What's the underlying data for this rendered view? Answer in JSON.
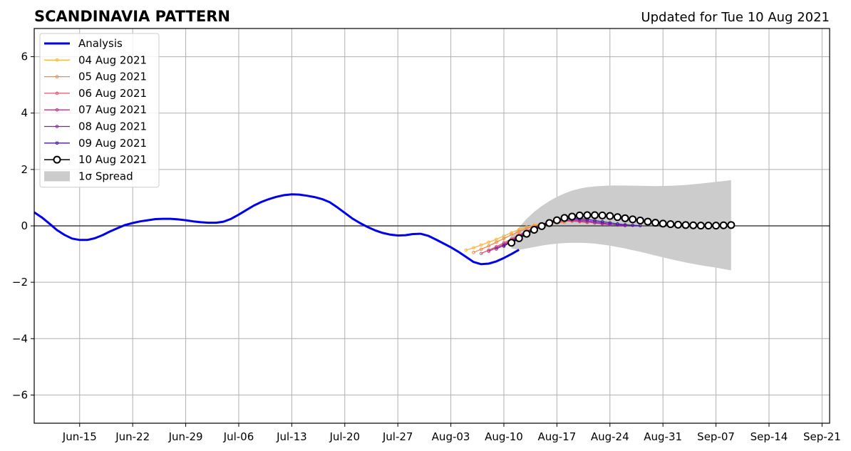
{
  "chart_data": {
    "type": "line",
    "title": "SCANDINAVIA PATTERN",
    "subtitle": "Updated for Tue 10 Aug 2021",
    "xlim": [
      "2021-06-09",
      "2021-09-22"
    ],
    "ylim": [
      -7,
      7
    ],
    "yticks": [
      -6,
      -4,
      -2,
      0,
      2,
      4,
      6
    ],
    "ytick_labels": [
      "−6",
      "−4",
      "−2",
      "0",
      "2",
      "4",
      "6"
    ],
    "xticks": [
      {
        "date": "2021-06-15",
        "label": "Jun-15"
      },
      {
        "date": "2021-06-22",
        "label": "Jun-22"
      },
      {
        "date": "2021-06-29",
        "label": "Jun-29"
      },
      {
        "date": "2021-07-06",
        "label": "Jul-06"
      },
      {
        "date": "2021-07-13",
        "label": "Jul-13"
      },
      {
        "date": "2021-07-20",
        "label": "Jul-20"
      },
      {
        "date": "2021-07-27",
        "label": "Jul-27"
      },
      {
        "date": "2021-08-03",
        "label": "Aug-03"
      },
      {
        "date": "2021-08-10",
        "label": "Aug-10"
      },
      {
        "date": "2021-08-17",
        "label": "Aug-17"
      },
      {
        "date": "2021-08-24",
        "label": "Aug-24"
      },
      {
        "date": "2021-08-31",
        "label": "Aug-31"
      },
      {
        "date": "2021-09-07",
        "label": "Sep-07"
      },
      {
        "date": "2021-09-14",
        "label": "Sep-14"
      },
      {
        "date": "2021-09-21",
        "label": "Sep-21"
      }
    ],
    "grid": true,
    "legend_position": "top-left",
    "analysis": {
      "name": "Analysis",
      "color": "#0000ee",
      "points": [
        [
          "2021-06-09",
          0.48
        ],
        [
          "2021-06-10",
          0.3
        ],
        [
          "2021-06-11",
          0.08
        ],
        [
          "2021-06-12",
          -0.15
        ],
        [
          "2021-06-13",
          -0.32
        ],
        [
          "2021-06-14",
          -0.45
        ],
        [
          "2021-06-15",
          -0.5
        ],
        [
          "2021-06-16",
          -0.5
        ],
        [
          "2021-06-17",
          -0.44
        ],
        [
          "2021-06-18",
          -0.33
        ],
        [
          "2021-06-19",
          -0.2
        ],
        [
          "2021-06-20",
          -0.08
        ],
        [
          "2021-06-21",
          0.03
        ],
        [
          "2021-06-22",
          0.1
        ],
        [
          "2021-06-23",
          0.16
        ],
        [
          "2021-06-24",
          0.2
        ],
        [
          "2021-06-25",
          0.24
        ],
        [
          "2021-06-26",
          0.25
        ],
        [
          "2021-06-27",
          0.25
        ],
        [
          "2021-06-28",
          0.23
        ],
        [
          "2021-06-29",
          0.2
        ],
        [
          "2021-06-30",
          0.16
        ],
        [
          "2021-07-01",
          0.13
        ],
        [
          "2021-07-02",
          0.11
        ],
        [
          "2021-07-03",
          0.11
        ],
        [
          "2021-07-04",
          0.15
        ],
        [
          "2021-07-05",
          0.25
        ],
        [
          "2021-07-06",
          0.4
        ],
        [
          "2021-07-07",
          0.56
        ],
        [
          "2021-07-08",
          0.72
        ],
        [
          "2021-07-09",
          0.85
        ],
        [
          "2021-07-10",
          0.95
        ],
        [
          "2021-07-11",
          1.03
        ],
        [
          "2021-07-12",
          1.09
        ],
        [
          "2021-07-13",
          1.12
        ],
        [
          "2021-07-14",
          1.11
        ],
        [
          "2021-07-15",
          1.07
        ],
        [
          "2021-07-16",
          1.02
        ],
        [
          "2021-07-17",
          0.95
        ],
        [
          "2021-07-18",
          0.84
        ],
        [
          "2021-07-19",
          0.66
        ],
        [
          "2021-07-20",
          0.46
        ],
        [
          "2021-07-21",
          0.26
        ],
        [
          "2021-07-22",
          0.1
        ],
        [
          "2021-07-23",
          -0.04
        ],
        [
          "2021-07-24",
          -0.16
        ],
        [
          "2021-07-25",
          -0.25
        ],
        [
          "2021-07-26",
          -0.31
        ],
        [
          "2021-07-27",
          -0.34
        ],
        [
          "2021-07-28",
          -0.33
        ],
        [
          "2021-07-29",
          -0.29
        ],
        [
          "2021-07-30",
          -0.28
        ],
        [
          "2021-07-31",
          -0.35
        ],
        [
          "2021-08-01",
          -0.48
        ],
        [
          "2021-08-02",
          -0.62
        ],
        [
          "2021-08-03",
          -0.76
        ],
        [
          "2021-08-04",
          -0.92
        ],
        [
          "2021-08-05",
          -1.1
        ],
        [
          "2021-08-06",
          -1.28
        ],
        [
          "2021-08-07",
          -1.36
        ],
        [
          "2021-08-08",
          -1.34
        ],
        [
          "2021-08-09",
          -1.26
        ],
        [
          "2021-08-10",
          -1.14
        ],
        [
          "2021-08-11",
          -1.0
        ],
        [
          "2021-08-12",
          -0.85
        ]
      ]
    },
    "series": [
      {
        "name": "04 Aug 2021",
        "color": "#f5b942",
        "points": [
          [
            "2021-08-05",
            -0.86
          ],
          [
            "2021-08-06",
            -0.78
          ],
          [
            "2021-08-07",
            -0.68
          ],
          [
            "2021-08-08",
            -0.58
          ],
          [
            "2021-08-09",
            -0.48
          ],
          [
            "2021-08-10",
            -0.36
          ],
          [
            "2021-08-11",
            -0.24
          ],
          [
            "2021-08-12",
            -0.13
          ],
          [
            "2021-08-13",
            -0.04
          ],
          [
            "2021-08-14",
            0.03
          ],
          [
            "2021-08-15",
            0.08
          ],
          [
            "2021-08-16",
            0.1
          ],
          [
            "2021-08-17",
            0.11
          ]
        ]
      },
      {
        "name": "05 Aug 2021",
        "color": "#f08a4b",
        "points": [
          [
            "2021-08-06",
            -0.94
          ],
          [
            "2021-08-07",
            -0.83
          ],
          [
            "2021-08-08",
            -0.71
          ],
          [
            "2021-08-09",
            -0.58
          ],
          [
            "2021-08-10",
            -0.45
          ],
          [
            "2021-08-11",
            -0.32
          ],
          [
            "2021-08-12",
            -0.2
          ],
          [
            "2021-08-13",
            -0.09
          ],
          [
            "2021-08-14",
            0.0
          ],
          [
            "2021-08-15",
            0.06
          ],
          [
            "2021-08-16",
            0.1
          ],
          [
            "2021-08-17",
            0.12
          ],
          [
            "2021-08-18",
            0.12
          ]
        ]
      },
      {
        "name": "06 Aug 2021",
        "color": "#e0566e",
        "points": [
          [
            "2021-08-07",
            -0.98
          ],
          [
            "2021-08-08",
            -0.86
          ],
          [
            "2021-08-09",
            -0.74
          ],
          [
            "2021-08-10",
            -0.6
          ],
          [
            "2021-08-11",
            -0.46
          ],
          [
            "2021-08-12",
            -0.32
          ],
          [
            "2021-08-13",
            -0.19
          ],
          [
            "2021-08-14",
            -0.07
          ],
          [
            "2021-08-15",
            0.03
          ],
          [
            "2021-08-16",
            0.1
          ],
          [
            "2021-08-17",
            0.15
          ],
          [
            "2021-08-18",
            0.17
          ],
          [
            "2021-08-19",
            0.17
          ],
          [
            "2021-08-20",
            0.15
          ],
          [
            "2021-08-21",
            0.12
          ]
        ]
      },
      {
        "name": "07 Aug 2021",
        "color": "#b6368c",
        "points": [
          [
            "2021-08-08",
            -0.9
          ],
          [
            "2021-08-09",
            -0.78
          ],
          [
            "2021-08-10",
            -0.65
          ],
          [
            "2021-08-11",
            -0.5
          ],
          [
            "2021-08-12",
            -0.35
          ],
          [
            "2021-08-13",
            -0.2
          ],
          [
            "2021-08-14",
            -0.07
          ],
          [
            "2021-08-15",
            0.04
          ],
          [
            "2021-08-16",
            0.12
          ],
          [
            "2021-08-17",
            0.17
          ],
          [
            "2021-08-18",
            0.19
          ],
          [
            "2021-08-19",
            0.19
          ],
          [
            "2021-08-20",
            0.17
          ],
          [
            "2021-08-21",
            0.14
          ],
          [
            "2021-08-22",
            0.1
          ],
          [
            "2021-08-23",
            0.07
          ],
          [
            "2021-08-24",
            0.04
          ]
        ]
      },
      {
        "name": "08 Aug 2021",
        "color": "#8a1f9e",
        "points": [
          [
            "2021-08-09",
            -0.82
          ],
          [
            "2021-08-10",
            -0.69
          ],
          [
            "2021-08-11",
            -0.53
          ],
          [
            "2021-08-12",
            -0.37
          ],
          [
            "2021-08-13",
            -0.21
          ],
          [
            "2021-08-14",
            -0.07
          ],
          [
            "2021-08-15",
            0.05
          ],
          [
            "2021-08-16",
            0.14
          ],
          [
            "2021-08-17",
            0.2
          ],
          [
            "2021-08-18",
            0.23
          ],
          [
            "2021-08-19",
            0.23
          ],
          [
            "2021-08-20",
            0.21
          ],
          [
            "2021-08-21",
            0.18
          ],
          [
            "2021-08-22",
            0.14
          ],
          [
            "2021-08-23",
            0.1
          ],
          [
            "2021-08-24",
            0.06
          ],
          [
            "2021-08-25",
            0.03
          ],
          [
            "2021-08-26",
            0.01
          ]
        ]
      },
      {
        "name": "09 Aug 2021",
        "color": "#4b1a9c",
        "points": [
          [
            "2021-08-10",
            -0.72
          ],
          [
            "2021-08-11",
            -0.56
          ],
          [
            "2021-08-12",
            -0.39
          ],
          [
            "2021-08-13",
            -0.23
          ],
          [
            "2021-08-14",
            -0.08
          ],
          [
            "2021-08-15",
            0.05
          ],
          [
            "2021-08-16",
            0.15
          ],
          [
            "2021-08-17",
            0.22
          ],
          [
            "2021-08-18",
            0.26
          ],
          [
            "2021-08-19",
            0.27
          ],
          [
            "2021-08-20",
            0.26
          ],
          [
            "2021-08-21",
            0.23
          ],
          [
            "2021-08-22",
            0.19
          ],
          [
            "2021-08-23",
            0.15
          ],
          [
            "2021-08-24",
            0.11
          ],
          [
            "2021-08-25",
            0.07
          ],
          [
            "2021-08-26",
            0.04
          ],
          [
            "2021-08-27",
            0.02
          ],
          [
            "2021-08-28",
            0.01
          ]
        ]
      },
      {
        "name": "10 Aug 2021",
        "color": "#000000",
        "marker": "open-circle",
        "points": [
          [
            "2021-08-11",
            -0.6
          ],
          [
            "2021-08-12",
            -0.44
          ],
          [
            "2021-08-13",
            -0.28
          ],
          [
            "2021-08-14",
            -0.14
          ],
          [
            "2021-08-15",
            -0.01
          ],
          [
            "2021-08-16",
            0.1
          ],
          [
            "2021-08-17",
            0.2
          ],
          [
            "2021-08-18",
            0.28
          ],
          [
            "2021-08-19",
            0.33
          ],
          [
            "2021-08-20",
            0.37
          ],
          [
            "2021-08-21",
            0.38
          ],
          [
            "2021-08-22",
            0.38
          ],
          [
            "2021-08-23",
            0.37
          ],
          [
            "2021-08-24",
            0.35
          ],
          [
            "2021-08-25",
            0.31
          ],
          [
            "2021-08-26",
            0.27
          ],
          [
            "2021-08-27",
            0.23
          ],
          [
            "2021-08-28",
            0.19
          ],
          [
            "2021-08-29",
            0.15
          ],
          [
            "2021-08-30",
            0.11
          ],
          [
            "2021-08-31",
            0.08
          ],
          [
            "2021-09-01",
            0.06
          ],
          [
            "2021-09-02",
            0.04
          ],
          [
            "2021-09-03",
            0.03
          ],
          [
            "2021-09-04",
            0.02
          ],
          [
            "2021-09-05",
            0.01
          ],
          [
            "2021-09-06",
            0.01
          ],
          [
            "2021-09-07",
            0.01
          ],
          [
            "2021-09-08",
            0.02
          ],
          [
            "2021-09-09",
            0.03
          ]
        ]
      }
    ],
    "spread": {
      "name": "1σ Spread",
      "color": "#cccccc",
      "points": [
        [
          "2021-08-11",
          -0.8,
          -0.4
        ],
        [
          "2021-08-12",
          -0.85,
          -0.05
        ],
        [
          "2021-08-13",
          -0.8,
          0.25
        ],
        [
          "2021-08-14",
          -0.75,
          0.5
        ],
        [
          "2021-08-15",
          -0.7,
          0.7
        ],
        [
          "2021-08-16",
          -0.66,
          0.88
        ],
        [
          "2021-08-17",
          -0.63,
          1.03
        ],
        [
          "2021-08-18",
          -0.61,
          1.15
        ],
        [
          "2021-08-19",
          -0.6,
          1.25
        ],
        [
          "2021-08-20",
          -0.6,
          1.32
        ],
        [
          "2021-08-21",
          -0.61,
          1.37
        ],
        [
          "2021-08-22",
          -0.63,
          1.4
        ],
        [
          "2021-08-24",
          -0.7,
          1.43
        ],
        [
          "2021-08-26",
          -0.8,
          1.43
        ],
        [
          "2021-08-28",
          -0.92,
          1.42
        ],
        [
          "2021-08-30",
          -1.05,
          1.41
        ],
        [
          "2021-09-01",
          -1.18,
          1.42
        ],
        [
          "2021-09-03",
          -1.3,
          1.45
        ],
        [
          "2021-09-05",
          -1.4,
          1.5
        ],
        [
          "2021-09-07",
          -1.48,
          1.56
        ],
        [
          "2021-09-09",
          -1.58,
          1.62
        ]
      ]
    }
  }
}
